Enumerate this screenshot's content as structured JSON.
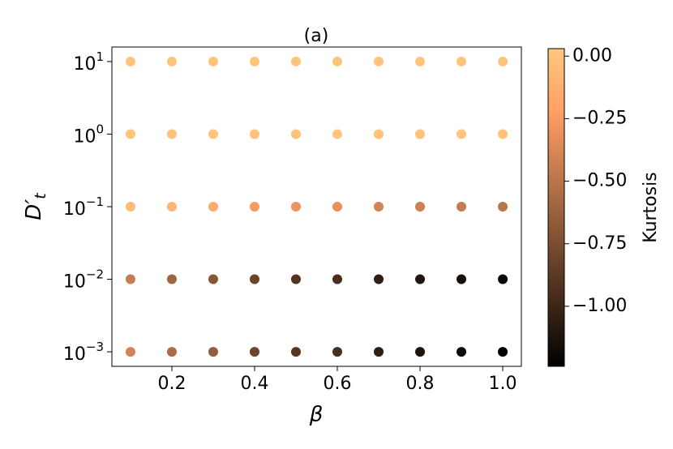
{
  "chart_data": {
    "type": "scatter",
    "title": "(a)",
    "xlabel": "β",
    "ylabel": {
      "base": "D′",
      "subscript": "t"
    },
    "colorbar_label": "Kurtosis",
    "colormap": "copper",
    "clim": [
      -1.24,
      0.03
    ],
    "x": [
      0.1,
      0.2,
      0.3,
      0.4,
      0.5,
      0.6,
      0.7,
      0.8,
      0.9,
      1.0,
      0.1,
      0.2,
      0.3,
      0.4,
      0.5,
      0.6,
      0.7,
      0.8,
      0.9,
      1.0,
      0.1,
      0.2,
      0.3,
      0.4,
      0.5,
      0.6,
      0.7,
      0.8,
      0.9,
      1.0,
      0.1,
      0.2,
      0.3,
      0.4,
      0.5,
      0.6,
      0.7,
      0.8,
      0.9,
      1.0,
      0.1,
      0.2,
      0.3,
      0.4,
      0.5,
      0.6,
      0.7,
      0.8,
      0.9,
      1.0
    ],
    "y": [
      10,
      10,
      10,
      10,
      10,
      10,
      10,
      10,
      10,
      10,
      1,
      1,
      1,
      1,
      1,
      1,
      1,
      1,
      1,
      1,
      0.1,
      0.1,
      0.1,
      0.1,
      0.1,
      0.1,
      0.1,
      0.1,
      0.1,
      0.1,
      0.01,
      0.01,
      0.01,
      0.01,
      0.01,
      0.01,
      0.01,
      0.01,
      0.01,
      0.01,
      0.001,
      0.001,
      0.001,
      0.001,
      0.001,
      0.001,
      0.001,
      0.001,
      0.001,
      0.001
    ],
    "c": [
      0,
      0,
      0,
      0,
      0,
      0,
      0,
      0,
      0,
      0,
      0,
      0,
      0,
      0,
      0,
      0,
      0,
      0,
      0,
      0,
      -0.05,
      -0.08,
      -0.15,
      -0.25,
      -0.3,
      -0.32,
      -0.4,
      -0.42,
      -0.45,
      -0.5,
      -0.45,
      -0.6,
      -0.7,
      -0.8,
      -0.9,
      -0.95,
      -1.05,
      -1.1,
      -1.15,
      -1.18,
      -0.4,
      -0.55,
      -0.65,
      -0.8,
      -0.9,
      -0.95,
      -1.05,
      -1.12,
      -1.18,
      -1.22
    ],
    "xlim": [
      0.055,
      1.045
    ],
    "xticks": [
      0.2,
      0.4,
      0.6,
      0.8,
      {
        "value": 1,
        "label": "1.0"
      }
    ],
    "ylim": [
      0.000631,
      15.85
    ],
    "log_y": true,
    "yticks": [
      {
        "value": 0.001,
        "base": "10",
        "exponent": "−3"
      },
      {
        "value": 0.01,
        "base": "10",
        "exponent": "−2"
      },
      {
        "value": 0.1,
        "base": "10",
        "exponent": "−1"
      },
      {
        "value": 1,
        "base": "10",
        "exponent": "0"
      },
      {
        "value": 10,
        "base": "10",
        "exponent": "1"
      }
    ],
    "cticks": [
      {
        "value": 0,
        "label": "0.00"
      },
      {
        "value": -0.25,
        "label": "−0.25"
      },
      {
        "value": -0.5,
        "label": "−0.50"
      },
      {
        "value": -0.75,
        "label": "−0.75"
      },
      {
        "value": -1,
        "label": "−1.00"
      }
    ]
  }
}
